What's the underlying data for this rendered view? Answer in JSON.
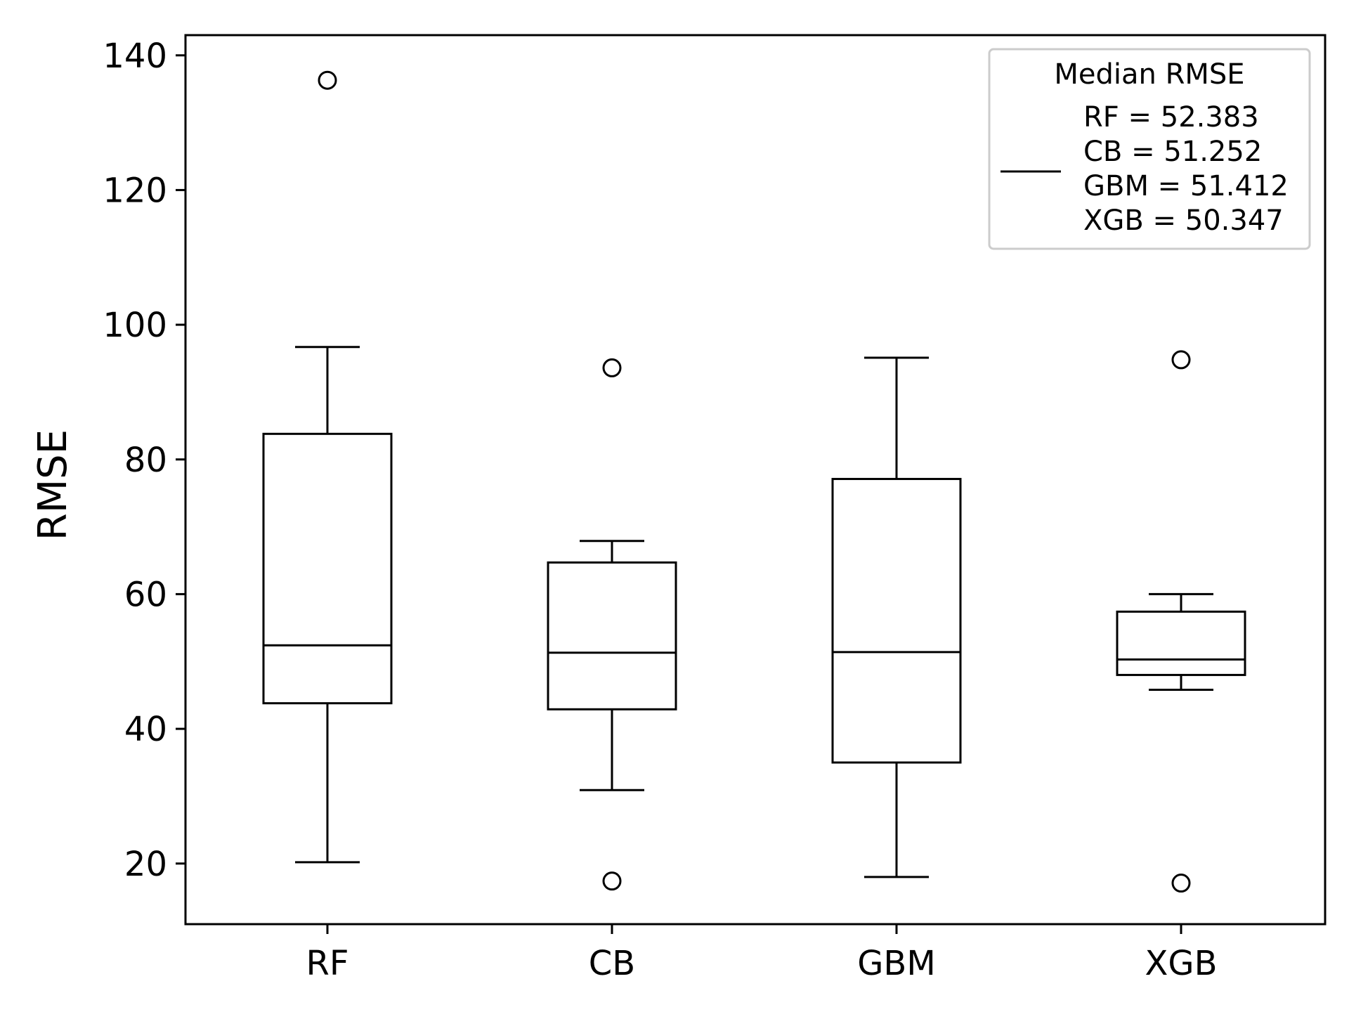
{
  "chart_data": {
    "type": "box",
    "title": "",
    "xlabel": "",
    "ylabel": "RMSE",
    "ylim": [
      11,
      143
    ],
    "yticks": [
      20,
      40,
      60,
      80,
      100,
      120,
      140
    ],
    "categories": [
      "RF",
      "CB",
      "GBM",
      "XGB"
    ],
    "boxes": [
      {
        "name": "RF",
        "whisker_low": 20.2,
        "q1": 43.8,
        "median": 52.4,
        "q3": 83.8,
        "whisker_high": 96.7,
        "outliers": [
          136.3
        ]
      },
      {
        "name": "CB",
        "whisker_low": 30.9,
        "q1": 42.9,
        "median": 51.3,
        "q3": 64.7,
        "whisker_high": 67.9,
        "outliers": [
          93.6,
          17.4
        ]
      },
      {
        "name": "GBM",
        "whisker_low": 18.0,
        "q1": 35.0,
        "median": 51.4,
        "q3": 77.1,
        "whisker_high": 95.1,
        "outliers": []
      },
      {
        "name": "XGB",
        "whisker_low": 45.8,
        "q1": 48.0,
        "median": 50.3,
        "q3": 57.4,
        "whisker_high": 60.0,
        "outliers": [
          94.8,
          17.1
        ]
      }
    ],
    "grid": false,
    "legend": {
      "placement": "top-right",
      "title": "Median RMSE",
      "entries": [
        "RF = 52.383",
        "CB = 51.252",
        "GBM = 51.412",
        "XGB = 50.347"
      ]
    }
  }
}
